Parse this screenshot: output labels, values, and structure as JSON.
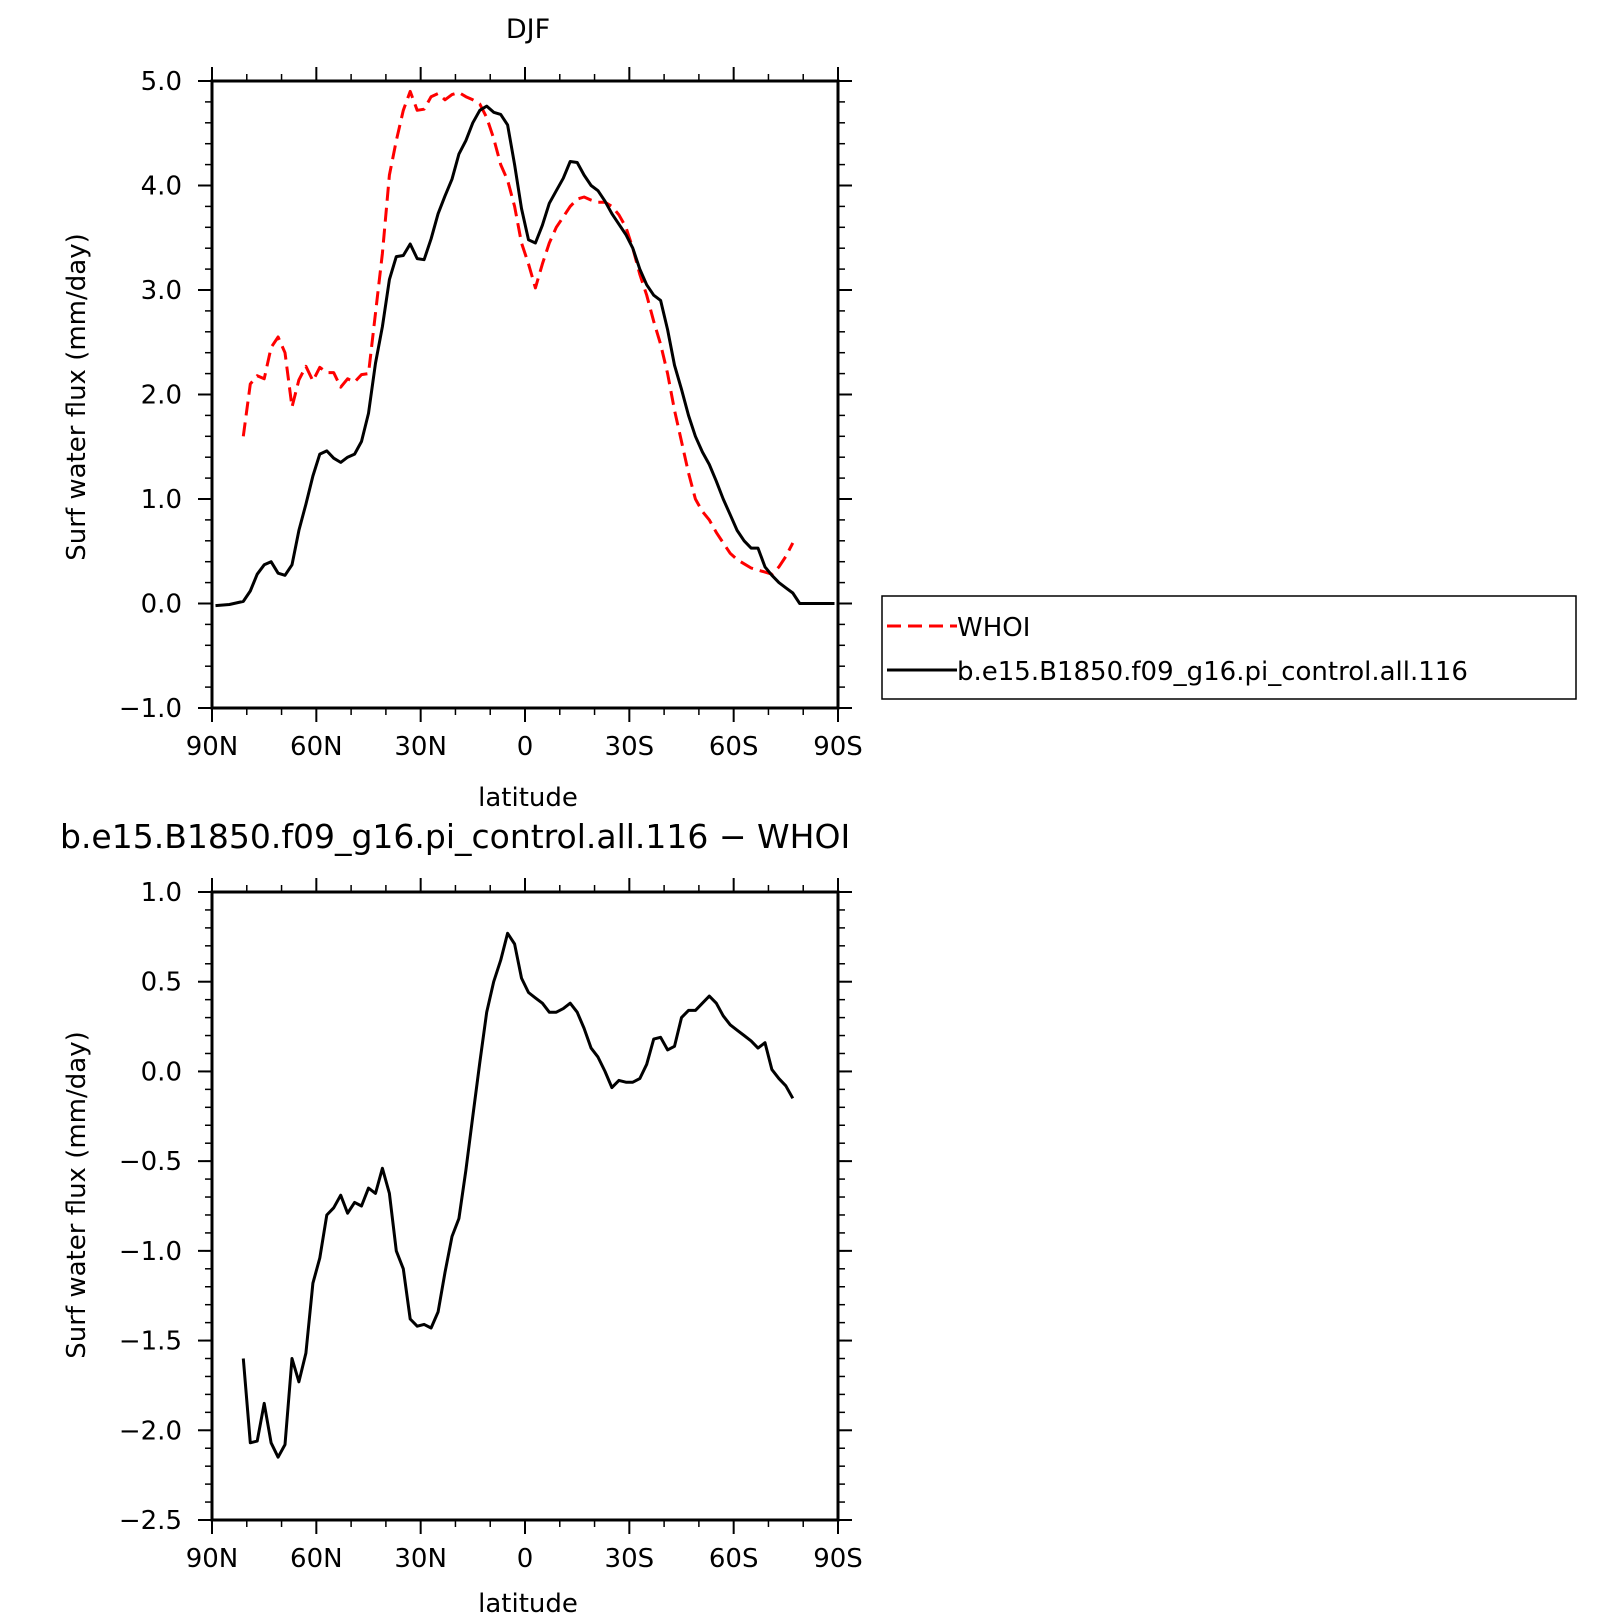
{
  "chart_data": [
    {
      "type": "line",
      "title": "DJF",
      "xlabel": "latitude",
      "ylabel": "Surf water flux (mm/day)",
      "xlim": [
        90,
        -90
      ],
      "ylim": [
        -1.0,
        5.0
      ],
      "xticks": [
        {
          "v": 90,
          "label": "90N"
        },
        {
          "v": 60,
          "label": "60N"
        },
        {
          "v": 30,
          "label": "30N"
        },
        {
          "v": 0,
          "label": "0"
        },
        {
          "v": -30,
          "label": "30S"
        },
        {
          "v": -60,
          "label": "60S"
        },
        {
          "v": -90,
          "label": "90S"
        }
      ],
      "yticks": [
        {
          "v": 5,
          "label": "5.0"
        },
        {
          "v": 4,
          "label": "4.0"
        },
        {
          "v": 3,
          "label": "3.0"
        },
        {
          "v": 2,
          "label": "2.0"
        },
        {
          "v": 1,
          "label": "1.0"
        },
        {
          "v": 0,
          "label": "0.0"
        },
        {
          "v": -1,
          "label": "−1.0"
        }
      ],
      "legend": "right",
      "series": [
        {
          "name": "WHOI",
          "color": "#ff0000",
          "dash": true,
          "x": [
            81,
            79,
            77,
            75,
            73,
            71,
            69,
            67,
            65,
            63,
            61,
            59,
            57,
            55,
            53,
            51,
            49,
            47,
            45,
            43,
            41,
            39,
            37,
            35,
            33,
            31,
            29,
            27,
            25,
            23,
            21,
            19,
            17,
            15,
            13,
            11,
            9,
            7,
            5,
            3,
            1,
            -1,
            -3,
            -5,
            -7,
            -9,
            -11,
            -13,
            -15,
            -17,
            -19,
            -21,
            -23,
            -25,
            -27,
            -29,
            -31,
            -33,
            -35,
            -37,
            -39,
            -41,
            -43,
            -45,
            -47,
            -49,
            -51,
            -53,
            -55,
            -57,
            -59,
            -61,
            -63,
            -65,
            -67,
            -69,
            -71,
            -73,
            -75,
            -77
          ],
          "y": [
            1.6,
            2.1,
            2.18,
            2.15,
            2.45,
            2.55,
            2.4,
            1.88,
            2.14,
            2.27,
            2.13,
            2.26,
            2.21,
            2.21,
            2.07,
            2.15,
            2.12,
            2.19,
            2.2,
            2.78,
            3.35,
            4.1,
            4.43,
            4.72,
            4.9,
            4.72,
            4.73,
            4.85,
            4.88,
            4.82,
            4.87,
            4.89,
            4.85,
            4.82,
            4.78,
            4.65,
            4.45,
            4.2,
            4.05,
            3.8,
            3.45,
            3.25,
            3.02,
            3.25,
            3.45,
            3.6,
            3.7,
            3.8,
            3.87,
            3.89,
            3.86,
            3.84,
            3.84,
            3.8,
            3.72,
            3.6,
            3.4,
            3.15,
            2.95,
            2.7,
            2.48,
            2.2,
            1.85,
            1.55,
            1.25,
            1.0,
            0.88,
            0.8,
            0.68,
            0.58,
            0.48,
            0.42,
            0.38,
            0.34,
            0.32,
            0.3,
            0.28,
            0.35,
            0.45,
            0.58
          ]
        },
        {
          "name": "b.e15.B1850.f09_g16.pi_control.all.116",
          "color": "#000000",
          "dash": false,
          "x": [
            89,
            85,
            81,
            79,
            77,
            75,
            73,
            71,
            69,
            67,
            65,
            63,
            61,
            59,
            57,
            55,
            53,
            51,
            49,
            47,
            45,
            43,
            41,
            39,
            37,
            35,
            33,
            31,
            29,
            27,
            25,
            23,
            21,
            19,
            17,
            15,
            13,
            11,
            9,
            7,
            5,
            3,
            1,
            -1,
            -3,
            -5,
            -7,
            -9,
            -11,
            -13,
            -15,
            -17,
            -19,
            -21,
            -23,
            -25,
            -27,
            -29,
            -31,
            -33,
            -35,
            -37,
            -39,
            -41,
            -43,
            -45,
            -47,
            -49,
            -51,
            -53,
            -55,
            -57,
            -59,
            -61,
            -63,
            -65,
            -67,
            -69,
            -71,
            -73,
            -75,
            -77,
            -79,
            -83,
            -89
          ],
          "y": [
            -0.02,
            -0.01,
            0.02,
            0.12,
            0.28,
            0.37,
            0.4,
            0.29,
            0.27,
            0.37,
            0.7,
            0.95,
            1.22,
            1.43,
            1.46,
            1.39,
            1.35,
            1.4,
            1.43,
            1.55,
            1.82,
            2.3,
            2.65,
            3.1,
            3.32,
            3.33,
            3.44,
            3.3,
            3.29,
            3.49,
            3.73,
            3.9,
            4.06,
            4.3,
            4.43,
            4.6,
            4.72,
            4.76,
            4.7,
            4.68,
            4.58,
            4.2,
            3.78,
            3.48,
            3.45,
            3.62,
            3.83,
            3.95,
            4.07,
            4.23,
            4.22,
            4.1,
            4.0,
            3.95,
            3.85,
            3.73,
            3.63,
            3.53,
            3.4,
            3.2,
            3.05,
            2.95,
            2.9,
            2.62,
            2.28,
            2.05,
            1.8,
            1.6,
            1.45,
            1.33,
            1.17,
            1.0,
            0.85,
            0.7,
            0.6,
            0.53,
            0.53,
            0.35,
            0.27,
            0.2,
            0.15,
            0.1,
            0.0,
            0.0,
            0.0
          ]
        }
      ]
    },
    {
      "type": "line",
      "title": "b.e15.B1850.f09_g16.pi_control.all.116 − WHOI",
      "xlabel": "latitude",
      "ylabel": "Surf water flux (mm/day)",
      "xlim": [
        90,
        -90
      ],
      "ylim": [
        -2.5,
        1.0
      ],
      "xticks": [
        {
          "v": 90,
          "label": "90N"
        },
        {
          "v": 60,
          "label": "60N"
        },
        {
          "v": 30,
          "label": "30N"
        },
        {
          "v": 0,
          "label": "0"
        },
        {
          "v": -30,
          "label": "30S"
        },
        {
          "v": -60,
          "label": "60S"
        },
        {
          "v": -90,
          "label": "90S"
        }
      ],
      "yticks": [
        {
          "v": 1.0,
          "label": "1.0"
        },
        {
          "v": 0.5,
          "label": "0.5"
        },
        {
          "v": 0.0,
          "label": "0.0"
        },
        {
          "v": -0.5,
          "label": "−0.5"
        },
        {
          "v": -1.0,
          "label": "−1.0"
        },
        {
          "v": -1.5,
          "label": "−1.5"
        },
        {
          "v": -2.0,
          "label": "−2.0"
        },
        {
          "v": -2.5,
          "label": "−2.5"
        }
      ],
      "series": [
        {
          "color": "#000000",
          "dash": false,
          "x": [
            81,
            79,
            77,
            75,
            73,
            71,
            69,
            67,
            65,
            63,
            61,
            59,
            57,
            55,
            53,
            51,
            49,
            47,
            45,
            43,
            41,
            39,
            37,
            35,
            33,
            31,
            29,
            27,
            25,
            23,
            21,
            19,
            17,
            15,
            13,
            11,
            9,
            7,
            5,
            3,
            1,
            -1,
            -3,
            -5,
            -7,
            -9,
            -11,
            -13,
            -15,
            -17,
            -19,
            -21,
            -23,
            -25,
            -27,
            -29,
            -31,
            -33,
            -35,
            -37,
            -39,
            -41,
            -43,
            -45,
            -47,
            -49,
            -51,
            -53,
            -55,
            -57,
            -59,
            -61,
            -63,
            -65,
            -67,
            -69,
            -71,
            -73,
            -75,
            -77
          ],
          "y": [
            -1.6,
            -2.07,
            -2.06,
            -1.85,
            -2.07,
            -2.15,
            -2.08,
            -1.6,
            -1.73,
            -1.57,
            -1.18,
            -1.04,
            -0.8,
            -0.76,
            -0.69,
            -0.79,
            -0.73,
            -0.75,
            -0.65,
            -0.68,
            -0.54,
            -0.68,
            -1.0,
            -1.1,
            -1.38,
            -1.42,
            -1.41,
            -1.43,
            -1.34,
            -1.12,
            -0.92,
            -0.82,
            -0.55,
            -0.25,
            0.05,
            0.33,
            0.5,
            0.62,
            0.77,
            0.71,
            0.52,
            0.44,
            0.41,
            0.38,
            0.33,
            0.33,
            0.35,
            0.38,
            0.33,
            0.24,
            0.13,
            0.08,
            0.0,
            -0.09,
            -0.05,
            -0.06,
            -0.06,
            -0.04,
            0.04,
            0.18,
            0.19,
            0.12,
            0.14,
            0.3,
            0.34,
            0.34,
            0.38,
            0.42,
            0.38,
            0.31,
            0.26,
            0.23,
            0.2,
            0.17,
            0.13,
            0.16,
            0.01,
            -0.04,
            -0.08,
            -0.15
          ]
        }
      ]
    }
  ]
}
